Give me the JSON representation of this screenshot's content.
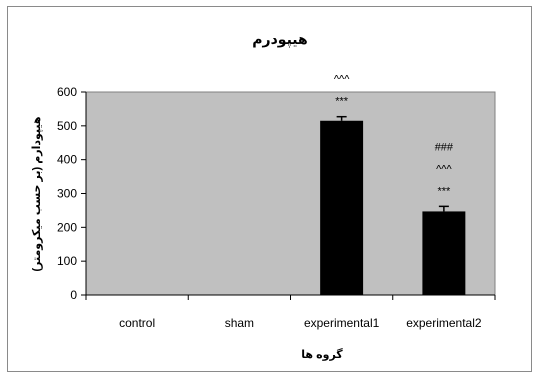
{
  "chart_data": {
    "type": "bar",
    "title": "هیپودرم",
    "xlabel": "گروه ها",
    "ylabel": "هیپودارم (بر حسب میکرومتر)",
    "categories": [
      "control",
      "sham",
      "experimental1",
      "experimental2"
    ],
    "values": [
      0,
      0,
      515,
      247
    ],
    "error": [
      0,
      0,
      12,
      15
    ],
    "annotations": [
      [],
      [],
      [
        "^^^",
        "***"
      ],
      [
        "###",
        "^^^",
        "***"
      ]
    ],
    "ylim": [
      0,
      600
    ],
    "yticks": [
      0,
      100,
      200,
      300,
      400,
      500,
      600
    ],
    "plot_background": "#c0c0c0",
    "bar_color": "#000000",
    "grid": false,
    "legend": "none"
  }
}
